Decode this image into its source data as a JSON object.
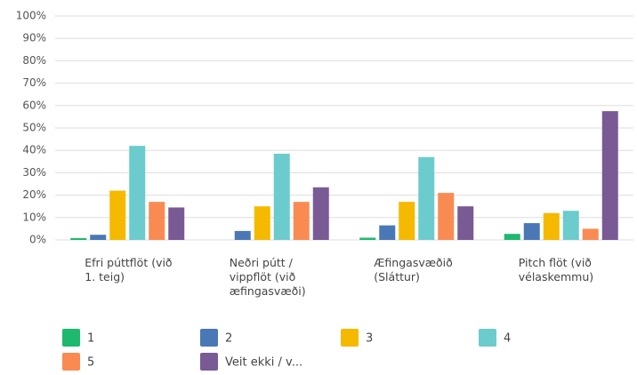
{
  "chart_data": {
    "type": "bar",
    "categories": [
      "Efri púttflöt (við 1. teig)",
      "Neðri pútt / vippflöt (við æfingasvæði)",
      "Æfingasvæðið (Sláttur)",
      "Pitch flöt (við vélaskemmu)"
    ],
    "series": [
      {
        "name": "1",
        "color": "#1fb86f",
        "values": [
          0.8,
          0,
          1,
          2.7
        ]
      },
      {
        "name": "2",
        "color": "#4a78b6",
        "values": [
          2.3,
          4,
          6.5,
          7.5
        ]
      },
      {
        "name": "3",
        "color": "#f5b900",
        "values": [
          22,
          15,
          17,
          12
        ]
      },
      {
        "name": "4",
        "color": "#6ccbcc",
        "values": [
          42,
          38.5,
          37,
          13
        ]
      },
      {
        "name": "5",
        "color": "#f98b52",
        "values": [
          17,
          17,
          21,
          5
        ]
      },
      {
        "name": "Veit ekki / v...",
        "color": "#795a95",
        "values": [
          14.5,
          23.5,
          15,
          57.5
        ]
      }
    ],
    "ylim": [
      0,
      100
    ],
    "yticks": [
      {
        "value": 0,
        "label": "0%"
      },
      {
        "value": 10,
        "label": "10%"
      },
      {
        "value": 20,
        "label": "20%"
      },
      {
        "value": 30,
        "label": "30%"
      },
      {
        "value": 40,
        "label": "40%"
      },
      {
        "value": 50,
        "label": "50%"
      },
      {
        "value": 60,
        "label": "60%"
      },
      {
        "value": 70,
        "label": "70%"
      },
      {
        "value": 80,
        "label": "80%"
      },
      {
        "value": 90,
        "label": "90%"
      },
      {
        "value": 100,
        "label": "100%"
      }
    ],
    "grid": true
  }
}
